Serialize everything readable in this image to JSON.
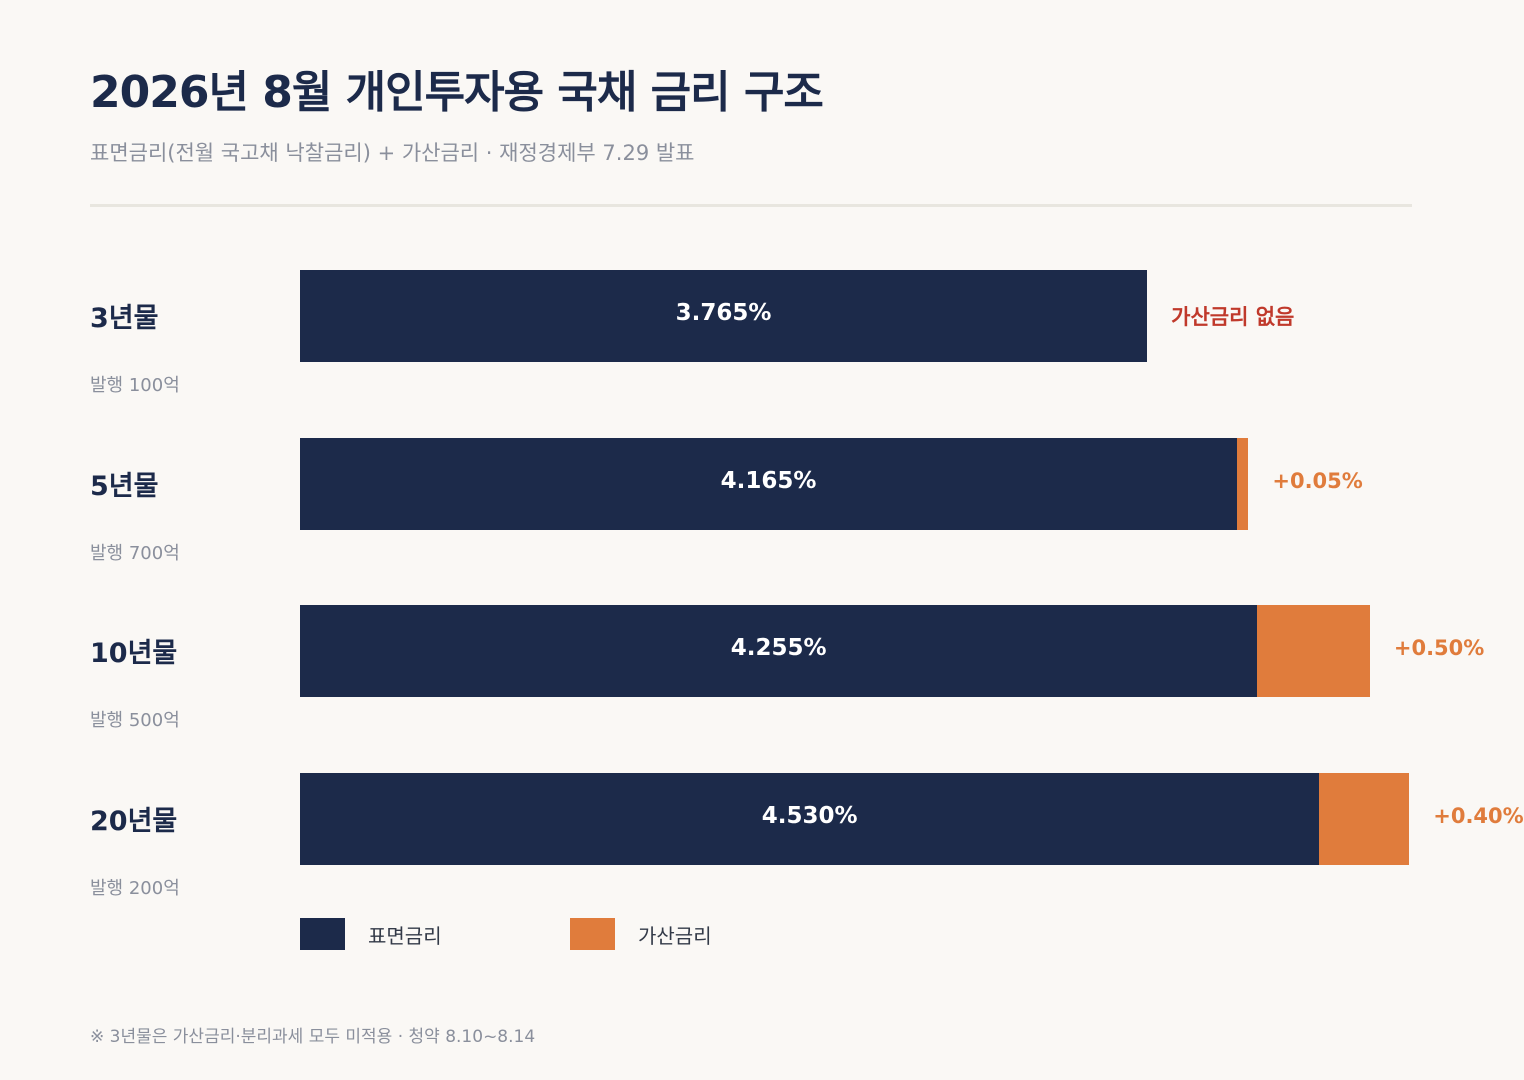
{
  "title": "2026년 8월 개인투자용 국채 금리 구조",
  "subtitle": "표면금리(전월 국고채 낙찰금리) + 가산금리 · 재정경제부 7.29 발표",
  "footnote": "※ 3년물은 가산금리·분리과세 모두 미적용 · 청약 8.10~8.14",
  "colors": {
    "base": "#1c2a4a",
    "add": "#e07c3c",
    "none_note": "#c0392b"
  },
  "chart_data": {
    "type": "bar",
    "orientation": "horizontal",
    "stacked": true,
    "unit": "%",
    "categories": [
      "3년물",
      "5년물",
      "10년물",
      "20년물"
    ],
    "issue_labels": [
      "발행 100억",
      "발행 700억",
      "발행 500억",
      "발행 200억"
    ],
    "series": [
      {
        "name": "표면금리",
        "values": [
          3.765,
          4.165,
          4.255,
          4.53
        ],
        "labels": [
          "3.765%",
          "4.165%",
          "4.255%",
          "4.530%"
        ]
      },
      {
        "name": "가산금리",
        "values": [
          0,
          0.05,
          0.5,
          0.4
        ],
        "labels": [
          "가산금리 없음",
          "+0.05%",
          "+0.50%",
          "+0.40%"
        ]
      }
    ],
    "legend": {
      "position": "bottom-left",
      "items": [
        "표면금리",
        "가산금리"
      ]
    },
    "grid": false
  }
}
